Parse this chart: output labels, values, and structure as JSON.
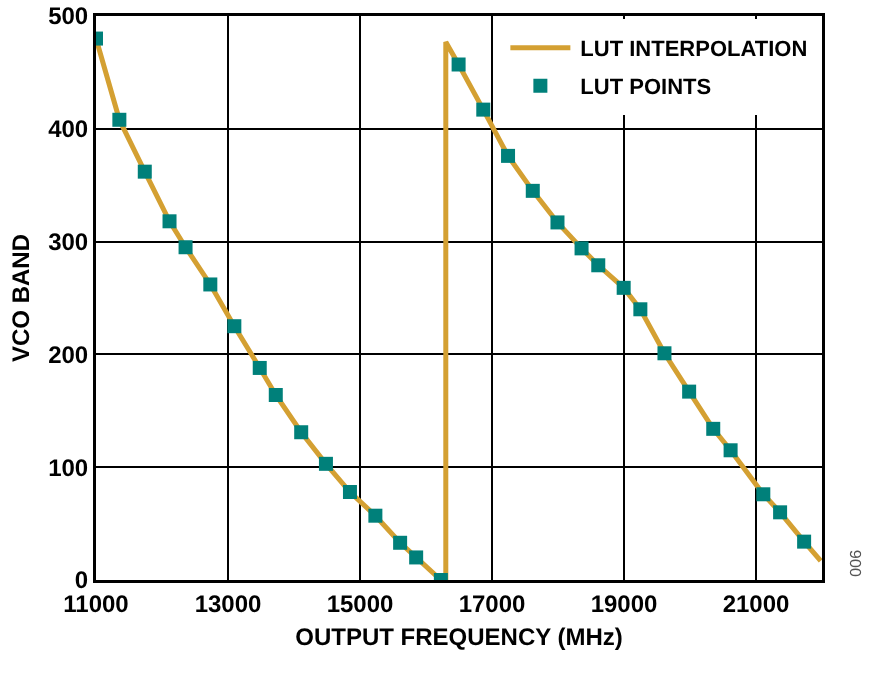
{
  "chart_data": {
    "type": "line",
    "xlabel": "OUTPUT FREQUENCY (MHz)",
    "ylabel": "VCO BAND",
    "xlim": [
      11000,
      22000
    ],
    "xticks": [
      11000,
      13000,
      15000,
      17000,
      19000,
      21000
    ],
    "ylim": [
      0,
      500
    ],
    "yticks": [
      0,
      100,
      200,
      300,
      400,
      500
    ],
    "grid": true,
    "legend": "top right",
    "annotations": [
      "006"
    ],
    "series": [
      {
        "name": "LUT INTERPOLATION",
        "type": "line",
        "color": "#d4a032",
        "marker": "none",
        "x": [
          11000,
          11354,
          11739,
          12114,
          12357,
          12732,
          13096,
          13481,
          13724,
          14109,
          14484,
          14848,
          15233,
          15608,
          15851,
          16225,
          16300,
          16300,
          16494,
          16868,
          17243,
          17618,
          17992,
          18357,
          18610,
          18995,
          19248,
          19613,
          19987,
          20352,
          20615,
          21111,
          21365,
          21729,
          21980
        ],
        "values": [
          480,
          408,
          362,
          318,
          295,
          262,
          225,
          188,
          164,
          131,
          103,
          78,
          57,
          33,
          20,
          0,
          0,
          477,
          457,
          417,
          376,
          345,
          317,
          294,
          279,
          259,
          240,
          201,
          167,
          134,
          115,
          76,
          60,
          34,
          17
        ]
      },
      {
        "name": "LUT POINTS",
        "type": "scatter",
        "color": "#00807a",
        "marker": "square",
        "x": [
          11000,
          11354,
          11739,
          12114,
          12357,
          12732,
          13096,
          13481,
          13724,
          14109,
          14484,
          14848,
          15233,
          15608,
          15851,
          16225,
          16494,
          16868,
          17243,
          17618,
          17992,
          18357,
          18610,
          18995,
          19248,
          19613,
          19987,
          20352,
          20615,
          21111,
          21365,
          21729
        ],
        "values": [
          480,
          408,
          362,
          318,
          295,
          262,
          225,
          188,
          164,
          131,
          103,
          78,
          57,
          33,
          20,
          0,
          457,
          417,
          376,
          345,
          317,
          294,
          279,
          259,
          240,
          201,
          167,
          134,
          115,
          76,
          60,
          34
        ]
      }
    ]
  }
}
